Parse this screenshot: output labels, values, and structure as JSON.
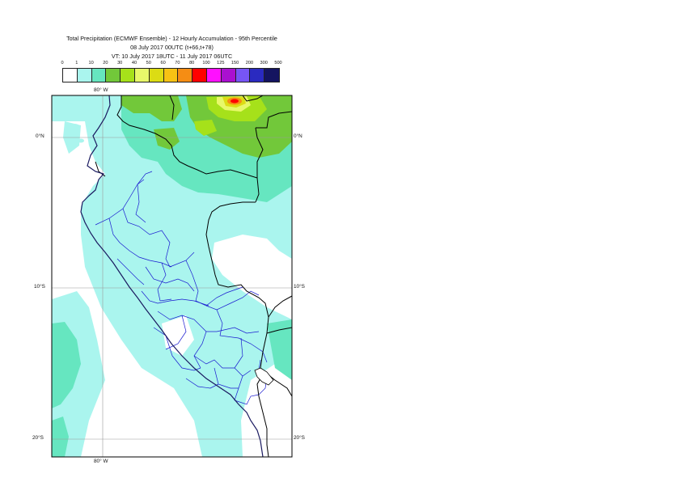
{
  "title": {
    "line1": "Total Precipitation (ECMWF Ensemble) - 12 Hourly Accumulation - 95th Percentile",
    "line2": "08 July 2017 00UTC (t+66,t+78)",
    "line3": "VT: 10 July 2017 18UTC - 11 July 2017 06UTC"
  },
  "legend": {
    "labels": [
      "0",
      "1",
      "10",
      "20",
      "30",
      "40",
      "50",
      "60",
      "70",
      "80",
      "100",
      "125",
      "150",
      "200",
      "300",
      "500"
    ],
    "colors": [
      "#ffffff",
      "#aaf5ee",
      "#66e6c0",
      "#72c83a",
      "#a6e11a",
      "#e8f86a",
      "#dcdc14",
      "#f7c214",
      "#f58d14",
      "#ff0000",
      "#ff10ff",
      "#aa10d0",
      "#7755f5",
      "#2a2ac0",
      "#141460"
    ]
  },
  "axes": {
    "lon_top": "80° W",
    "lon_bottom": "80° W",
    "lat_0_left": "0°N",
    "lat_0_right": "0°N",
    "lat_10_left": "10°S",
    "lat_10_right": "10°S",
    "lat_20_left": "20°S",
    "lat_20_right": "20°S"
  },
  "colors": {
    "border": "#000000",
    "admin_lines": "#1a1ad0",
    "coast": "#1a1a60",
    "grid": "#9a9a9a"
  }
}
